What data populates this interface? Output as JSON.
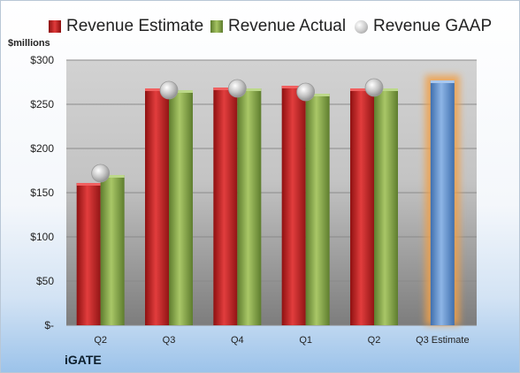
{
  "legend": {
    "estimate": "Revenue Estimate",
    "actual": "Revenue Actual",
    "gaap": "Revenue GAAP"
  },
  "unit_label": "$millions",
  "company": "iGATE",
  "colors": {
    "estimate": "#c62828",
    "actual": "#8fb04f",
    "forecast": "#6f9fd8",
    "gaap": "#c8c8c8"
  },
  "chart_data": {
    "type": "bar",
    "categories": [
      "Q2",
      "Q3",
      "Q4",
      "Q1",
      "Q2",
      "Q3 Estimate"
    ],
    "series": [
      {
        "name": "Revenue Estimate",
        "values": [
          161,
          268,
          269,
          271,
          268,
          277
        ]
      },
      {
        "name": "Revenue Actual",
        "values": [
          170,
          266,
          268,
          262,
          268,
          null
        ]
      },
      {
        "name": "Revenue GAAP",
        "values": [
          172,
          266,
          268,
          264,
          269,
          null
        ]
      }
    ],
    "yticks": [
      "$-",
      "$50",
      "$100",
      "$150",
      "$200",
      "$250",
      "$300"
    ],
    "ylim": [
      0,
      300
    ],
    "ylabel": "$millions",
    "grid": true,
    "legend": "top"
  }
}
